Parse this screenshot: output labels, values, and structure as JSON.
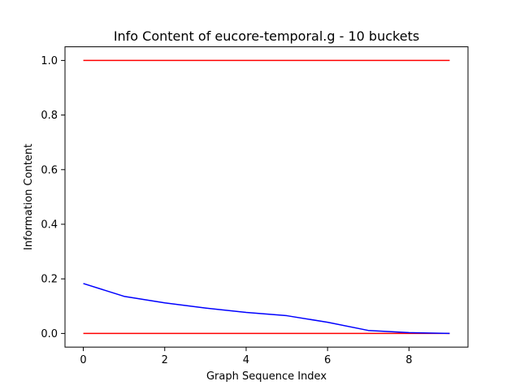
{
  "chart_data": {
    "type": "line",
    "title": "Info Content of eucore-temporal.g - 10 buckets",
    "xlabel": "Graph Sequence Index",
    "ylabel": "Information Content",
    "xlim": [
      -0.45,
      9.45
    ],
    "ylim": [
      -0.05,
      1.05
    ],
    "grid": false,
    "xticks": [
      0,
      2,
      4,
      6,
      8
    ],
    "xtick_labels": [
      "0",
      "2",
      "4",
      "6",
      "8"
    ],
    "yticks": [
      0.0,
      0.2,
      0.4,
      0.6,
      0.8,
      1.0
    ],
    "ytick_labels": [
      "0.0",
      "0.2",
      "0.4",
      "0.6",
      "0.8",
      "1.0"
    ],
    "series": [
      {
        "color": "#ff0000",
        "x": [
          0,
          9
        ],
        "y": [
          1.0,
          1.0
        ]
      },
      {
        "color": "#ff0000",
        "x": [
          0,
          9
        ],
        "y": [
          0.0,
          0.0
        ]
      },
      {
        "color": "#0000ff",
        "x": [
          0,
          1,
          2,
          3,
          4,
          5,
          6,
          7,
          8,
          9
        ],
        "y": [
          0.183,
          0.136,
          0.112,
          0.093,
          0.077,
          0.065,
          0.041,
          0.011,
          0.003,
          0.0
        ]
      }
    ]
  }
}
